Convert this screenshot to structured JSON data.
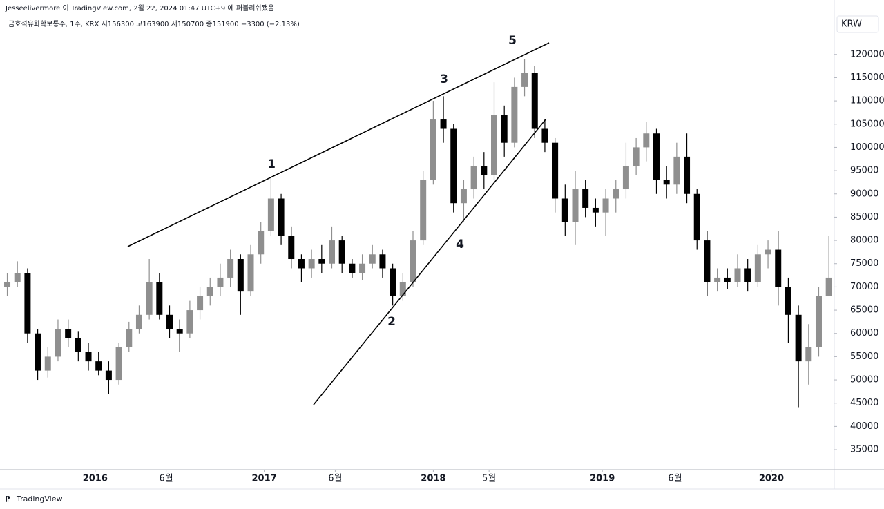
{
  "header": {
    "publisher": "Jesseelivermore 이 TradingView.com, 2월 22, 2024 01:47 UTC+9 에 퍼블리쉬됐음",
    "symbol_info": "금호석유화학보통주, 1주, KRX  시156300  고163900  저150700  종151900  −3300 (−2.13%)",
    "currency": "KRW"
  },
  "footer": {
    "brand": "TradingView"
  },
  "chart_data": {
    "type": "candlestick",
    "up_color": "#8f8f8f",
    "down_color": "#000000",
    "xlim": [
      2015.437,
      2020.372
    ],
    "ylim": [
      30700,
      131700
    ],
    "xticks": [
      {
        "value": 2016.0,
        "label": "2016"
      },
      {
        "value": 2016.42,
        "label": "6월"
      },
      {
        "value": 2017.0,
        "label": "2017"
      },
      {
        "value": 2017.42,
        "label": "6월"
      },
      {
        "value": 2018.0,
        "label": "2018"
      },
      {
        "value": 2018.33,
        "label": "5월"
      },
      {
        "value": 2019.0,
        "label": "2019"
      },
      {
        "value": 2019.43,
        "label": "6월"
      },
      {
        "value": 2020.0,
        "label": "2020"
      }
    ],
    "yticks": [
      35000,
      40000,
      45000,
      50000,
      55000,
      60000,
      65000,
      70000,
      75000,
      80000,
      85000,
      90000,
      95000,
      100000,
      105000,
      110000,
      115000,
      120000
    ],
    "annotations": [
      "1",
      "2",
      "3",
      "4",
      "5"
    ],
    "x": [
      2015.48,
      2015.54,
      2015.6,
      2015.66,
      2015.72,
      2015.78,
      2015.84,
      2015.9,
      2015.96,
      2016.02,
      2016.08,
      2016.14,
      2016.2,
      2016.26,
      2016.32,
      2016.38,
      2016.44,
      2016.5,
      2016.56,
      2016.62,
      2016.68,
      2016.74,
      2016.8,
      2016.86,
      2016.92,
      2016.98,
      2017.04,
      2017.1,
      2017.16,
      2017.22,
      2017.28,
      2017.34,
      2017.4,
      2017.46,
      2017.52,
      2017.58,
      2017.64,
      2017.7,
      2017.76,
      2017.82,
      2017.88,
      2017.94,
      2018.0,
      2018.06,
      2018.12,
      2018.18,
      2018.24,
      2018.3,
      2018.36,
      2018.42,
      2018.48,
      2018.54,
      2018.6,
      2018.66,
      2018.72,
      2018.78,
      2018.84,
      2018.9,
      2018.96,
      2019.02,
      2019.08,
      2019.14,
      2019.2,
      2019.26,
      2019.32,
      2019.38,
      2019.44,
      2019.5,
      2019.56,
      2019.62,
      2019.68,
      2019.74,
      2019.8,
      2019.86,
      2019.92,
      2019.98,
      2020.04,
      2020.1,
      2020.16,
      2020.22,
      2020.28,
      2020.34
    ],
    "open": [
      70000,
      71000,
      73000,
      60000,
      52000,
      55000,
      61000,
      59000,
      56000,
      54000,
      52000,
      50000,
      57000,
      61000,
      64000,
      71000,
      64000,
      61000,
      60000,
      65000,
      68000,
      70000,
      72000,
      76000,
      69000,
      77000,
      82000,
      89000,
      81000,
      76000,
      74000,
      76000,
      75000,
      80000,
      75000,
      73000,
      75000,
      77000,
      74000,
      68000,
      71000,
      80000,
      93000,
      106000,
      104000,
      88000,
      91000,
      96000,
      94000,
      107000,
      101000,
      113000,
      116000,
      104000,
      101000,
      89000,
      84000,
      91000,
      87000,
      86000,
      89000,
      91000,
      96000,
      100000,
      103000,
      93000,
      92000,
      98000,
      90000,
      80000,
      71000,
      72000,
      71000,
      74000,
      71000,
      77000,
      78000,
      70000,
      64000,
      54000,
      57000,
      68000
    ],
    "high": [
      73000,
      75500,
      74000,
      61000,
      57000,
      63000,
      63000,
      60500,
      58000,
      56000,
      54000,
      58000,
      62500,
      66000,
      76000,
      73000,
      66000,
      63000,
      67000,
      70000,
      72000,
      75000,
      78000,
      77000,
      79000,
      84000,
      93500,
      90000,
      83000,
      77000,
      78000,
      79000,
      83000,
      81000,
      76000,
      77000,
      79000,
      78000,
      75000,
      73000,
      82000,
      95000,
      110000,
      111000,
      105000,
      93000,
      98000,
      99000,
      114000,
      109000,
      115000,
      119000,
      117500,
      106000,
      102000,
      92000,
      95000,
      93000,
      89000,
      91000,
      93000,
      101000,
      102000,
      105500,
      104000,
      96000,
      101000,
      103000,
      91000,
      82000,
      74000,
      74000,
      77000,
      76000,
      79000,
      80000,
      82000,
      72000,
      66000,
      62000,
      70000,
      81000
    ],
    "low": [
      68000,
      70000,
      58000,
      50000,
      50500,
      54000,
      57000,
      54000,
      52000,
      51000,
      47000,
      49000,
      56000,
      60000,
      63000,
      63000,
      59000,
      56000,
      59000,
      63000,
      66000,
      68000,
      70000,
      64000,
      68000,
      75000,
      81000,
      79000,
      74000,
      71000,
      72000,
      73000,
      74000,
      73000,
      72000,
      71500,
      74000,
      72000,
      66000,
      67000,
      70000,
      79000,
      92000,
      101000,
      86000,
      84000,
      89000,
      91000,
      93000,
      98000,
      100000,
      111000,
      102000,
      99000,
      86000,
      81000,
      79000,
      85000,
      83000,
      81000,
      86000,
      89000,
      94000,
      97000,
      90000,
      89000,
      90000,
      88000,
      78000,
      68000,
      69000,
      69500,
      70000,
      69000,
      70000,
      74000,
      66000,
      58000,
      44000,
      49000,
      55000,
      69000
    ],
    "close": [
      71000,
      73000,
      60000,
      52000,
      55000,
      61000,
      59000,
      56000,
      54000,
      52000,
      50000,
      57000,
      61000,
      64000,
      71000,
      64000,
      61000,
      60000,
      65000,
      68000,
      70000,
      72000,
      76000,
      69000,
      77000,
      82000,
      89000,
      81000,
      76000,
      74000,
      76000,
      75000,
      80000,
      75000,
      73000,
      75000,
      77000,
      74000,
      68000,
      71000,
      80000,
      93000,
      106000,
      104000,
      88000,
      91000,
      96000,
      94000,
      107000,
      101000,
      113000,
      116000,
      104000,
      101000,
      89000,
      84000,
      91000,
      87000,
      86000,
      89000,
      91000,
      96000,
      100000,
      103000,
      93000,
      92000,
      98000,
      90000,
      80000,
      71000,
      72000,
      71000,
      74000,
      71000,
      77000,
      78000,
      70000,
      64000,
      54000,
      57000,
      68000,
      72000
    ]
  }
}
